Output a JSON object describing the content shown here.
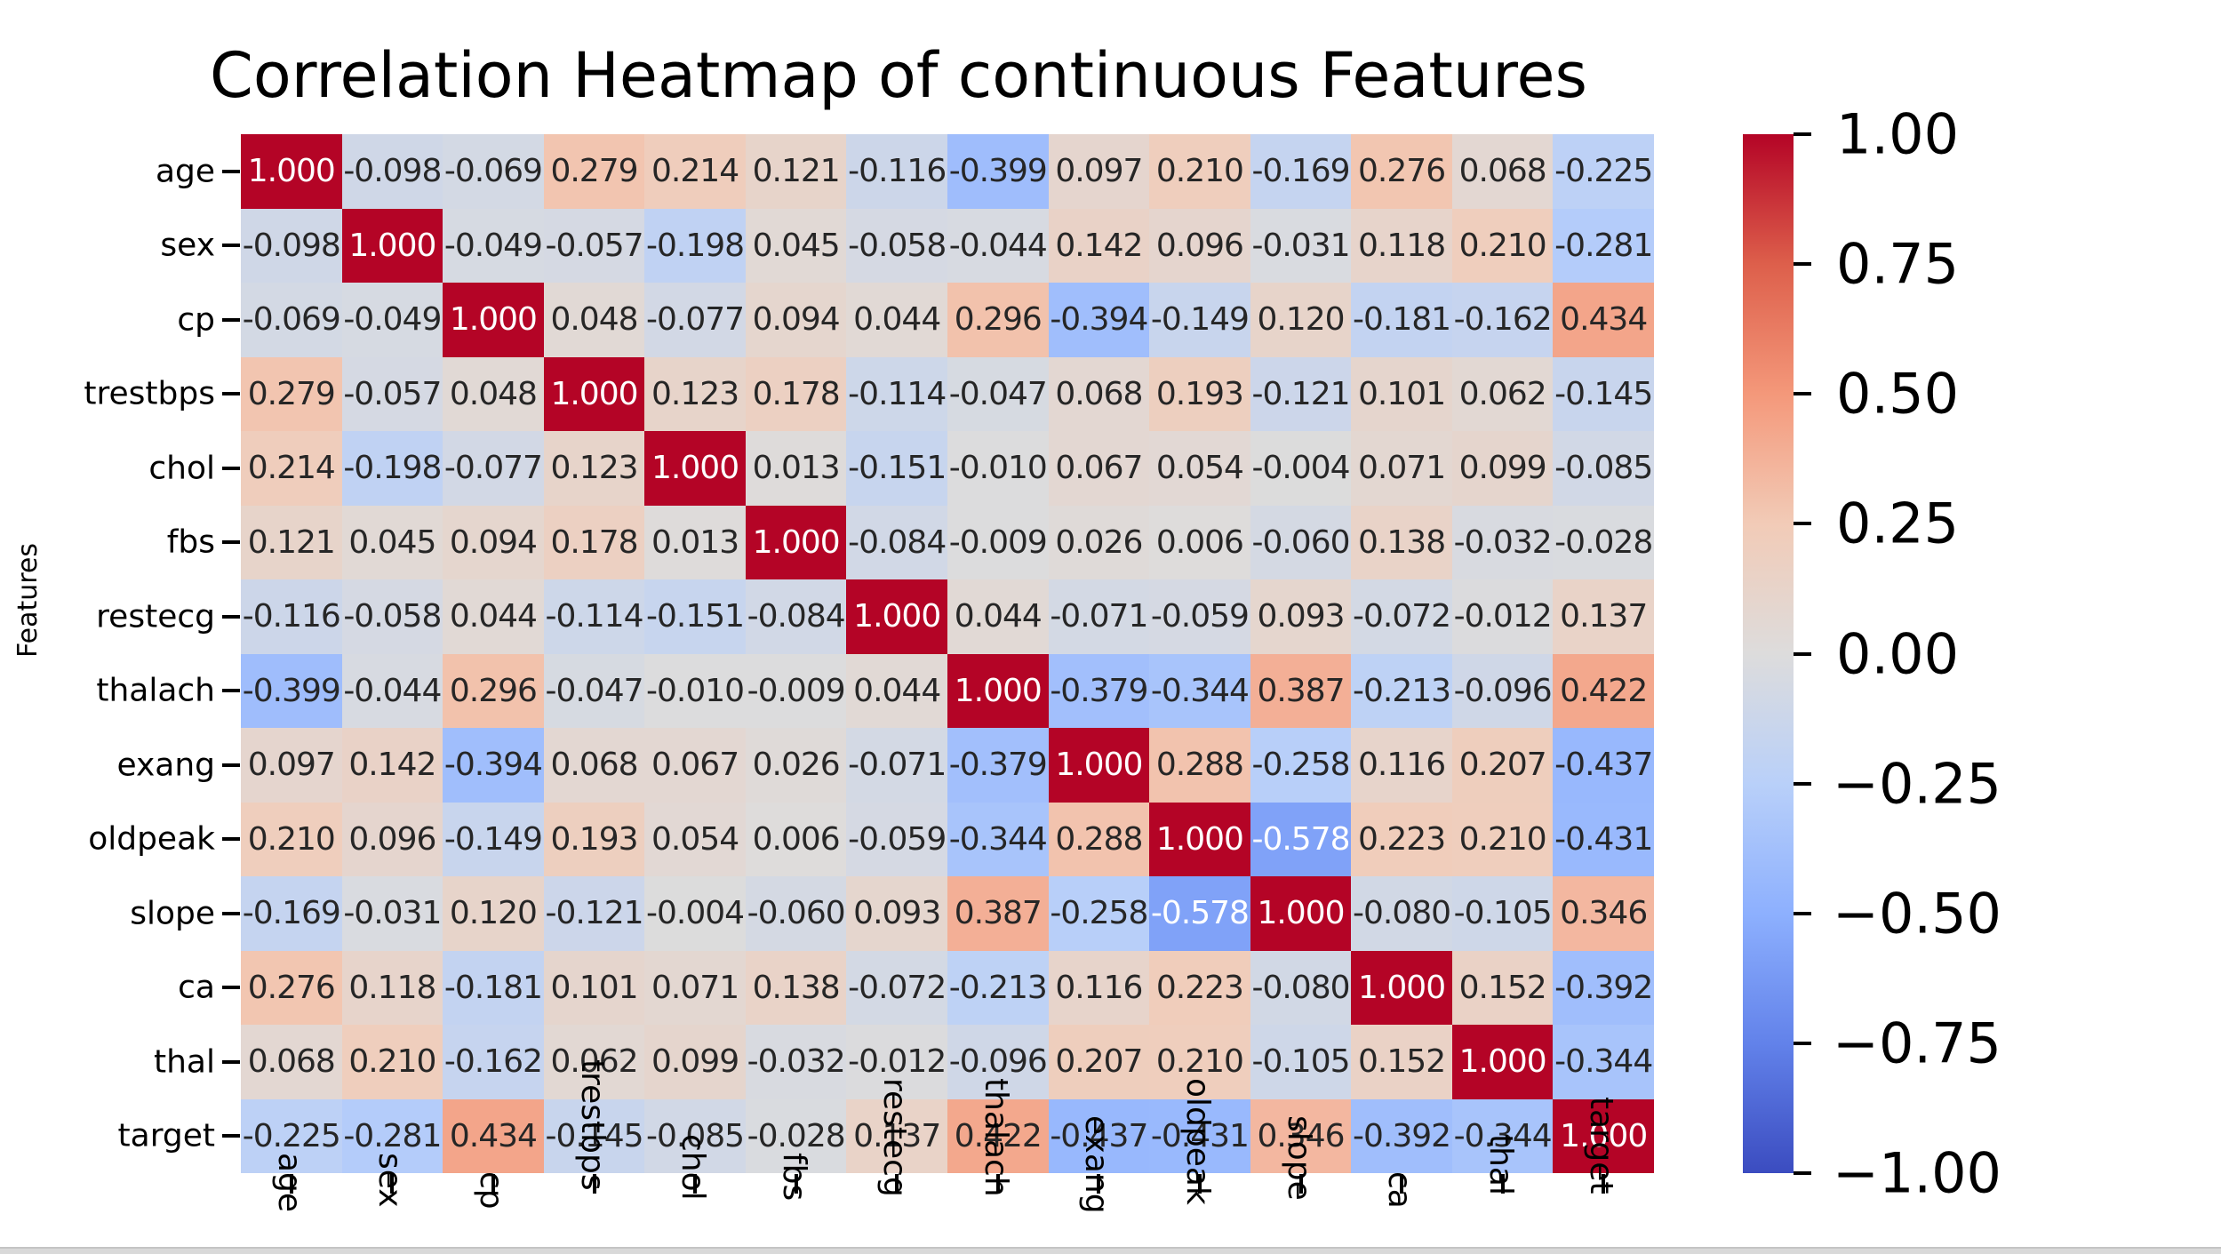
{
  "chart_data": {
    "type": "heatmap",
    "title": "Correlation Heatmap of continuous Features",
    "xlabel": "",
    "ylabel": "Features",
    "x_labels": [
      "age",
      "sex",
      "cp",
      "trestbps",
      "chol",
      "fbs",
      "restecg",
      "thalach",
      "exang",
      "oldpeak",
      "slope",
      "ca",
      "thal",
      "target"
    ],
    "y_labels": [
      "age",
      "sex",
      "cp",
      "trestbps",
      "chol",
      "fbs",
      "restecg",
      "thalach",
      "exang",
      "oldpeak",
      "slope",
      "ca",
      "thal",
      "target"
    ],
    "x_labels_visible_partial": [
      "ge",
      "ex",
      "cp",
      "os",
      "ol",
      "os",
      "cg",
      "ch",
      "ng",
      "ak",
      "pe",
      "ca",
      "al",
      "et"
    ],
    "colormap": "coolwarm",
    "vmin": -1.0,
    "vmax": 1.0,
    "colorbar_ticks": [
      "1.00",
      "0.75",
      "0.50",
      "0.25",
      "0.00",
      "−0.25",
      "−0.50",
      "−0.75",
      "−1.00"
    ],
    "annotation_format": "0.000",
    "values": [
      [
        1.0,
        -0.098,
        -0.069,
        0.279,
        0.214,
        0.121,
        -0.116,
        -0.399,
        0.097,
        0.21,
        -0.169,
        0.276,
        0.068,
        -0.225
      ],
      [
        -0.098,
        1.0,
        -0.049,
        -0.057,
        -0.198,
        0.045,
        -0.058,
        -0.044,
        0.142,
        0.096,
        -0.031,
        0.118,
        0.21,
        -0.281
      ],
      [
        -0.069,
        -0.049,
        1.0,
        0.048,
        -0.077,
        0.094,
        0.044,
        0.296,
        -0.394,
        -0.149,
        0.12,
        -0.181,
        -0.162,
        0.434
      ],
      [
        0.279,
        -0.057,
        0.048,
        1.0,
        0.123,
        0.178,
        -0.114,
        -0.047,
        0.068,
        0.193,
        -0.121,
        0.101,
        0.062,
        -0.145
      ],
      [
        0.214,
        -0.198,
        -0.077,
        0.123,
        1.0,
        0.013,
        -0.151,
        -0.01,
        0.067,
        0.054,
        -0.004,
        0.071,
        0.099,
        -0.085
      ],
      [
        0.121,
        0.045,
        0.094,
        0.178,
        0.013,
        1.0,
        -0.084,
        -0.009,
        0.026,
        0.006,
        -0.06,
        0.138,
        -0.032,
        -0.028
      ],
      [
        -0.116,
        -0.058,
        0.044,
        -0.114,
        -0.151,
        -0.084,
        1.0,
        0.044,
        -0.071,
        -0.059,
        0.093,
        -0.072,
        -0.012,
        0.137
      ],
      [
        -0.399,
        -0.044,
        0.296,
        -0.047,
        -0.01,
        -0.009,
        0.044,
        1.0,
        -0.379,
        -0.344,
        0.387,
        -0.213,
        -0.096,
        0.422
      ],
      [
        0.097,
        0.142,
        -0.394,
        0.068,
        0.067,
        0.026,
        -0.071,
        -0.379,
        1.0,
        0.288,
        -0.258,
        0.116,
        0.207,
        -0.437
      ],
      [
        0.21,
        0.096,
        -0.149,
        0.193,
        0.054,
        0.006,
        -0.059,
        -0.344,
        0.288,
        1.0,
        -0.578,
        0.223,
        0.21,
        -0.431
      ],
      [
        -0.169,
        -0.031,
        0.12,
        -0.121,
        -0.004,
        -0.06,
        0.093,
        0.387,
        -0.258,
        -0.578,
        1.0,
        -0.08,
        -0.105,
        0.346
      ],
      [
        0.276,
        0.118,
        -0.181,
        0.101,
        0.071,
        0.138,
        -0.072,
        -0.213,
        0.116,
        0.223,
        -0.08,
        1.0,
        0.152,
        -0.392
      ],
      [
        0.068,
        0.21,
        -0.162,
        0.062,
        0.099,
        -0.032,
        -0.012,
        -0.096,
        0.207,
        0.21,
        -0.105,
        0.152,
        1.0,
        -0.344
      ],
      [
        -0.225,
        -0.281,
        0.434,
        -0.145,
        -0.085,
        -0.028,
        0.137,
        0.422,
        -0.437,
        -0.431,
        0.346,
        -0.392,
        -0.344,
        1.0
      ]
    ]
  }
}
